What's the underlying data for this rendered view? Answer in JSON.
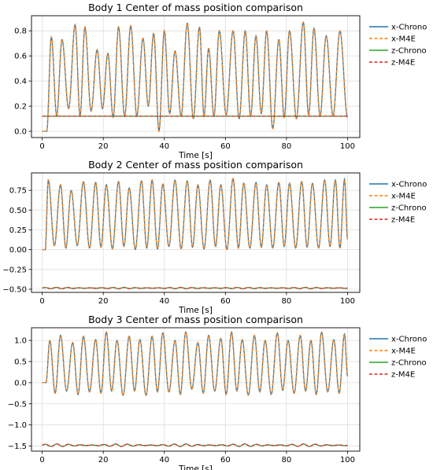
{
  "chart_data": [
    {
      "type": "line",
      "title": "Body 1 Center of mass position comparison",
      "xlabel": "Time [s]",
      "ylabel": "",
      "xlim": [
        -3.5,
        104
      ],
      "ylim": [
        -0.05,
        0.92
      ],
      "xticks": [
        0,
        20,
        40,
        60,
        80,
        100
      ],
      "yticks": [
        0.0,
        0.2,
        0.4,
        0.6,
        0.8
      ],
      "ytick_labels": [
        "0.0",
        "0.2",
        "0.4",
        "0.6",
        "0.8"
      ],
      "grid": true,
      "legend_position": "outside-right-top",
      "x_signal": {
        "peak_times": [
          3.0,
          6.5,
          10.8,
          14.0,
          18.0,
          21.5,
          25.0,
          29.0,
          33.0,
          36.5,
          40.0,
          43.5,
          47.5,
          51.5,
          54.5,
          58.0,
          62.5,
          66.5,
          70.0,
          73.5,
          77.5,
          81.0,
          85.5,
          89.0,
          93.0,
          97.5
        ],
        "peak_values": [
          0.75,
          0.73,
          0.85,
          0.83,
          0.65,
          0.62,
          0.83,
          0.84,
          0.74,
          0.78,
          0.8,
          0.64,
          0.86,
          0.83,
          0.66,
          0.8,
          0.8,
          0.8,
          0.76,
          0.8,
          0.73,
          0.8,
          0.87,
          0.82,
          0.76,
          0.8
        ],
        "trough_values": [
          0.1,
          0.12,
          0.18,
          0.12,
          0.16,
          0.18,
          0.11,
          0.12,
          0.12,
          0.2,
          0.0,
          0.14,
          0.12,
          0.1,
          0.12,
          0.12,
          0.13,
          0.1,
          0.12,
          0.14,
          0.02,
          0.11,
          0.1,
          0.13,
          0.12,
          0.12
        ],
        "start": 0.0,
        "end": 0.11
      },
      "z_signal": {
        "mean": 0.12,
        "amplitude": 0.0,
        "freq": 0.25
      },
      "series": [
        {
          "name": "x-Chrono",
          "color": "#1f77b4",
          "dash": "solid",
          "signal": "x"
        },
        {
          "name": "x-M4E",
          "color": "#ff7f0e",
          "dash": "dashed",
          "signal": "x"
        },
        {
          "name": "z-Chrono",
          "color": "#2ca02c",
          "dash": "solid",
          "signal": "z"
        },
        {
          "name": "z-M4E",
          "color": "#d62728",
          "dash": "dashed",
          "signal": "z"
        }
      ]
    },
    {
      "type": "line",
      "title": "Body 2 Center of mass position comparison",
      "xlabel": "Time [s]",
      "ylabel": "",
      "xlim": [
        -3.5,
        104
      ],
      "ylim": [
        -0.54,
        0.97
      ],
      "xticks": [
        0,
        20,
        40,
        60,
        80,
        100
      ],
      "yticks": [
        -0.5,
        -0.25,
        0.0,
        0.25,
        0.5,
        0.75
      ],
      "ytick_labels": [
        "−0.50",
        "−0.25",
        "0.00",
        "0.25",
        "0.50",
        "0.75"
      ],
      "grid": true,
      "legend_position": "outside-right-top",
      "x_signal": {
        "peak_times": [
          2.0,
          6.0,
          9.5,
          13.5,
          17.5,
          21.0,
          25.0,
          28.5,
          32.5,
          36.0,
          39.5,
          43.5,
          47.5,
          51.0,
          55.0,
          58.5,
          62.5,
          66.0,
          70.0,
          73.5,
          77.5,
          81.0,
          85.0,
          88.5,
          92.5,
          96.0,
          99.0
        ],
        "peak_values": [
          0.88,
          0.82,
          0.75,
          0.86,
          0.85,
          0.82,
          0.86,
          0.78,
          0.87,
          0.88,
          0.83,
          0.88,
          0.87,
          0.82,
          0.88,
          0.82,
          0.9,
          0.84,
          0.85,
          0.82,
          0.85,
          0.84,
          0.86,
          0.84,
          0.88,
          0.88,
          0.89
        ],
        "trough_values": [
          0.0,
          0.05,
          0.02,
          0.05,
          0.02,
          0.03,
          0.01,
          0.04,
          0.0,
          0.02,
          0.01,
          0.04,
          0.01,
          0.03,
          0.01,
          0.04,
          0.0,
          0.02,
          0.02,
          0.03,
          0.02,
          0.04,
          0.02,
          0.03,
          0.02,
          0.04,
          0.02
        ],
        "start": 0.0,
        "end": 0.13
      },
      "z_signal": {
        "mean": -0.485,
        "amplitude": 0.008,
        "freq": 0.27
      },
      "series": [
        {
          "name": "x-Chrono",
          "color": "#1f77b4",
          "dash": "solid",
          "signal": "x"
        },
        {
          "name": "x-M4E",
          "color": "#ff7f0e",
          "dash": "dashed",
          "signal": "x"
        },
        {
          "name": "z-Chrono",
          "color": "#2ca02c",
          "dash": "solid",
          "signal": "z"
        },
        {
          "name": "z-M4E",
          "color": "#d62728",
          "dash": "dashed",
          "signal": "z"
        }
      ]
    },
    {
      "type": "line",
      "title": "Body 3 Center of mass position comparison",
      "xlabel": "Time [s]",
      "ylabel": "",
      "xlim": [
        -3.5,
        104
      ],
      "ylim": [
        -1.62,
        1.3
      ],
      "xticks": [
        0,
        20,
        40,
        60,
        80,
        100
      ],
      "yticks": [
        -1.5,
        -1.0,
        -0.5,
        0.0,
        0.5,
        1.0
      ],
      "ytick_labels": [
        "−1.5",
        "−1.0",
        "−0.5",
        "0.0",
        "0.5",
        "1.0"
      ],
      "grid": true,
      "legend_position": "outside-right-top",
      "x_signal": {
        "peak_times": [
          2.5,
          6.0,
          10.0,
          13.5,
          17.5,
          21.0,
          24.5,
          28.5,
          32.0,
          36.0,
          39.5,
          43.5,
          47.0,
          51.0,
          54.5,
          58.5,
          62.0,
          65.5,
          69.5,
          73.0,
          77.0,
          80.5,
          84.5,
          88.0,
          91.5,
          95.5,
          99.0
        ],
        "peak_values": [
          1.0,
          1.12,
          0.95,
          1.1,
          1.02,
          1.2,
          1.0,
          1.1,
          1.02,
          1.1,
          1.18,
          1.0,
          1.2,
          0.95,
          1.12,
          1.05,
          1.2,
          1.02,
          1.12,
          1.0,
          1.18,
          1.0,
          1.12,
          1.0,
          1.2,
          1.02,
          1.15
        ],
        "trough_values": [
          0.0,
          -0.25,
          -0.2,
          -0.28,
          -0.22,
          -0.25,
          -0.2,
          -0.3,
          -0.2,
          -0.3,
          -0.22,
          -0.22,
          -0.28,
          -0.15,
          -0.25,
          -0.2,
          -0.28,
          -0.2,
          -0.3,
          -0.22,
          -0.28,
          -0.18,
          -0.25,
          -0.2,
          -0.28,
          -0.22,
          -0.25
        ],
        "start": 0.0,
        "end": 0.15
      },
      "z_signal": {
        "mean": -1.48,
        "amplitude": 0.03,
        "freq": 0.26
      },
      "series": [
        {
          "name": "x-Chrono",
          "color": "#1f77b4",
          "dash": "solid",
          "signal": "x"
        },
        {
          "name": "x-M4E",
          "color": "#ff7f0e",
          "dash": "dashed",
          "signal": "x"
        },
        {
          "name": "z-Chrono",
          "color": "#2ca02c",
          "dash": "solid",
          "signal": "z"
        },
        {
          "name": "z-M4E",
          "color": "#d62728",
          "dash": "dashed",
          "signal": "z"
        }
      ]
    }
  ]
}
